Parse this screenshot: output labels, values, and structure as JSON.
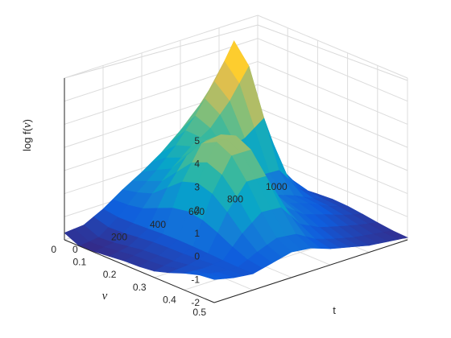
{
  "chart_data": {
    "type": "surface",
    "zlabel_pre": "log f(",
    "zlabel_sym": "ν",
    "zlabel_post": ")",
    "xlabel": "t",
    "ylabel": "ν",
    "xlim": [
      0,
      1000
    ],
    "ylim": [
      0,
      0.5
    ],
    "zlim": [
      -2,
      5
    ],
    "x_ticks": [
      "0",
      "200",
      "400",
      "600",
      "800",
      "1000"
    ],
    "y_ticks": [
      "0",
      "0.1",
      "0.2",
      "0.3",
      "0.4",
      "0.5"
    ],
    "z_ticks": [
      "-2",
      "-1",
      "0",
      "1",
      "2",
      "3",
      "4",
      "5"
    ],
    "grid": true,
    "colormap": "parula",
    "colormap_stops": [
      "#352a87",
      "#0f5cdd",
      "#1481d6",
      "#06a4ca",
      "#2eb7a4",
      "#87bf77",
      "#d1bb59",
      "#fec832",
      "#f9fb0e"
    ],
    "y_grid": [
      0,
      0.05,
      0.1,
      0.15,
      0.2,
      0.25,
      0.3,
      0.35,
      0.4,
      0.45,
      0.5
    ],
    "ridges": [
      {
        "x": [
          0,
          100,
          200,
          300,
          400,
          500,
          600,
          700,
          800,
          900,
          1000
        ],
        "z": [
          -2,
          -1.9,
          -1.3,
          -0.5,
          0.2,
          1.0,
          2.0,
          3.2,
          4.7,
          0.0,
          -1.9
        ]
      },
      {
        "x": [
          0,
          100,
          200,
          300,
          400,
          500,
          600,
          700,
          800,
          900,
          1000
        ],
        "z": [
          -1.8,
          -1.6,
          -1.2,
          1.0,
          2.5,
          2.5,
          0.2,
          -0.6,
          -0.9,
          -1.3,
          -1.6
        ]
      },
      {
        "x": [
          0,
          100,
          200,
          300,
          400,
          500,
          600,
          700,
          800,
          900,
          1000
        ],
        "z": [
          -1.0,
          -1.2,
          -1.3,
          -1.1,
          -0.9,
          -1.0,
          -1.3,
          -1.5,
          -1.7,
          -1.8,
          -1.9
        ]
      }
    ]
  }
}
